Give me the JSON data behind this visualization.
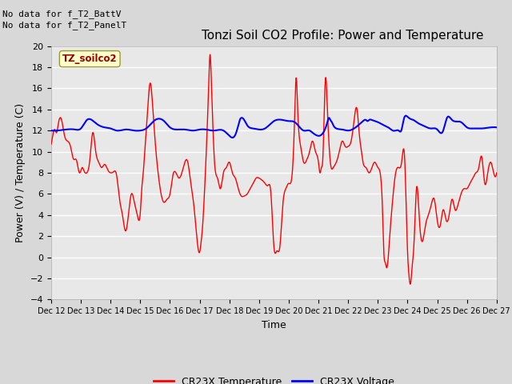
{
  "title": "Tonzi Soil CO2 Profile: Power and Temperature",
  "ylabel": "Power (V) / Temperature (C)",
  "xlabel": "Time",
  "top_left_text_line1": "No data for f_T2_BattV",
  "top_left_text_line2": "No data for f_T2_PanelT",
  "box_label": "TZ_soilco2",
  "ylim": [
    -4,
    20
  ],
  "yticks": [
    -4,
    -2,
    0,
    2,
    4,
    6,
    8,
    10,
    12,
    14,
    16,
    18,
    20
  ],
  "x_tick_labels": [
    "Dec 12",
    "Dec 13",
    "Dec 14",
    "Dec 15",
    "Dec 16",
    "Dec 17",
    "Dec 18",
    "Dec 19",
    "Dec 20",
    "Dec 21",
    "Dec 22",
    "Dec 23",
    "Dec 24",
    "Dec 25",
    "Dec 26",
    "Dec 27"
  ],
  "background_color": "#d8d8d8",
  "plot_bg_color": "#e8e8e8",
  "grid_color": "#ffffff",
  "legend_items": [
    "CR23X Temperature",
    "CR23X Voltage"
  ],
  "legend_colors": [
    "#ff0000",
    "#0000ff"
  ],
  "red_line_color": "#ff0000",
  "blue_line_color": "#0000ff",
  "title_fontsize": 11,
  "axis_label_fontsize": 9,
  "tick_fontsize": 8,
  "note_fontsize": 8,
  "red_x": [
    0.0,
    0.05,
    0.12,
    0.18,
    0.25,
    0.35,
    0.45,
    0.55,
    0.65,
    0.75,
    0.85,
    0.95,
    1.05,
    1.1,
    1.2,
    1.3,
    1.4,
    1.5,
    1.6,
    1.7,
    1.8,
    1.9,
    2.0,
    2.1,
    2.2,
    2.3,
    2.4,
    2.5,
    2.6,
    2.7,
    2.8,
    2.9,
    3.0,
    3.05,
    3.1,
    3.15,
    3.2,
    3.25,
    3.3,
    3.35,
    3.4,
    3.45,
    3.5,
    3.6,
    3.7,
    3.8,
    3.9,
    4.0,
    4.1,
    4.2,
    4.3,
    4.4,
    4.5,
    4.6,
    4.7,
    4.8,
    4.9,
    5.0,
    5.05,
    5.1,
    5.15,
    5.2,
    5.25,
    5.3,
    5.35,
    5.4,
    5.45,
    5.5,
    5.6,
    5.7,
    5.8,
    5.9,
    6.0,
    6.1,
    6.2,
    6.3,
    6.4,
    6.5,
    6.6,
    6.7,
    6.8,
    6.9,
    7.0,
    7.1,
    7.2,
    7.3,
    7.4,
    7.5,
    7.6,
    7.7,
    7.8,
    7.9,
    8.0,
    8.1,
    8.15,
    8.2,
    8.25,
    8.3,
    8.35,
    8.4,
    8.5,
    8.6,
    8.7,
    8.8,
    8.9,
    9.0,
    9.05,
    9.1,
    9.15,
    9.2,
    9.25,
    9.3,
    9.35,
    9.4,
    9.5,
    9.6,
    9.7,
    9.8,
    9.9,
    10.0,
    10.1,
    10.2,
    10.25,
    10.3,
    10.35,
    10.4,
    10.45,
    10.5,
    10.6,
    10.7,
    10.8,
    10.9,
    11.0,
    11.05,
    11.1,
    11.15,
    11.2,
    11.25,
    11.3,
    11.35,
    11.4,
    11.5,
    11.6,
    11.7,
    11.8,
    11.9,
    12.0,
    12.05,
    12.1,
    12.15,
    12.2,
    12.25,
    12.3,
    12.4,
    12.5,
    12.6,
    12.7,
    12.8,
    12.9,
    13.0,
    13.1,
    13.2,
    13.3,
    13.4,
    13.5,
    13.6,
    13.7,
    13.8,
    13.9,
    14.0,
    14.1,
    14.2,
    14.3,
    14.4,
    14.5,
    14.6,
    14.7,
    14.8,
    14.9,
    15.0
  ],
  "red_y": [
    10.7,
    11.5,
    12.1,
    11.8,
    12.8,
    13.0,
    11.5,
    11.0,
    10.5,
    9.3,
    9.2,
    8.0,
    8.5,
    8.2,
    8.0,
    9.2,
    11.8,
    10.0,
    9.0,
    8.5,
    8.8,
    8.3,
    8.0,
    8.1,
    7.8,
    5.5,
    4.0,
    2.5,
    4.0,
    6.0,
    5.2,
    4.0,
    4.2,
    6.5,
    8.0,
    10.0,
    12.0,
    14.0,
    16.0,
    16.4,
    15.0,
    13.0,
    11.0,
    8.0,
    6.0,
    5.2,
    5.5,
    6.0,
    7.8,
    8.0,
    7.5,
    8.0,
    9.0,
    9.0,
    7.0,
    5.0,
    2.0,
    0.5,
    1.5,
    3.0,
    5.5,
    8.5,
    12.0,
    16.0,
    19.2,
    16.0,
    12.0,
    9.0,
    7.5,
    6.5,
    8.0,
    8.5,
    9.0,
    8.0,
    7.5,
    6.5,
    5.8,
    5.8,
    6.0,
    6.5,
    7.0,
    7.5,
    7.5,
    7.3,
    7.0,
    6.8,
    6.0,
    1.0,
    0.6,
    1.0,
    5.0,
    6.5,
    7.0,
    7.5,
    9.5,
    13.5,
    17.0,
    14.0,
    11.5,
    10.5,
    9.0,
    9.2,
    10.0,
    11.0,
    10.0,
    9.0,
    8.0,
    8.5,
    9.5,
    14.5,
    17.0,
    14.0,
    11.0,
    9.0,
    8.5,
    9.0,
    10.0,
    11.0,
    10.5,
    10.5,
    11.0,
    13.0,
    14.0,
    14.0,
    12.5,
    11.0,
    10.0,
    9.0,
    8.5,
    8.0,
    8.5,
    9.0,
    8.5,
    8.3,
    7.5,
    5.0,
    0.5,
    -0.5,
    -1.0,
    0.0,
    2.0,
    5.5,
    8.0,
    8.5,
    9.0,
    9.5,
    0.5,
    -1.8,
    -2.5,
    -1.0,
    0.5,
    3.5,
    6.5,
    3.5,
    1.5,
    3.0,
    4.0,
    5.0,
    5.5,
    3.5,
    3.0,
    4.5,
    3.5,
    4.0,
    5.5,
    4.5,
    5.0,
    6.0,
    6.5,
    6.5,
    7.0,
    7.5,
    8.0,
    8.5,
    9.5,
    7.0,
    8.0,
    9.0,
    8.0,
    8.0
  ],
  "blue_x": [
    0.0,
    0.2,
    0.5,
    0.8,
    1.0,
    1.2,
    1.5,
    1.8,
    2.0,
    2.2,
    2.5,
    2.8,
    3.0,
    3.2,
    3.5,
    3.8,
    4.0,
    4.2,
    4.5,
    4.8,
    5.0,
    5.2,
    5.5,
    5.8,
    6.0,
    6.2,
    6.3,
    6.35,
    6.4,
    6.5,
    6.6,
    6.8,
    7.0,
    7.2,
    7.5,
    7.8,
    8.0,
    8.2,
    8.5,
    8.7,
    8.8,
    8.9,
    9.0,
    9.2,
    9.3,
    9.35,
    9.4,
    9.45,
    9.5,
    9.6,
    9.8,
    10.0,
    10.2,
    10.5,
    10.6,
    10.65,
    10.7,
    10.8,
    11.0,
    11.2,
    11.4,
    11.5,
    11.6,
    11.7,
    11.8,
    11.85,
    11.9,
    12.0,
    12.1,
    12.2,
    12.3,
    12.5,
    12.8,
    13.0,
    13.2,
    13.25,
    13.3,
    13.35,
    13.4,
    13.5,
    13.8,
    14.0,
    14.2,
    14.5,
    14.8,
    15.0
  ],
  "blue_y": [
    12.0,
    12.0,
    12.1,
    12.1,
    12.2,
    13.0,
    12.7,
    12.3,
    12.2,
    12.0,
    12.1,
    12.0,
    12.0,
    12.2,
    13.0,
    12.9,
    12.3,
    12.1,
    12.1,
    12.0,
    12.1,
    12.1,
    12.0,
    12.0,
    11.5,
    11.6,
    12.5,
    13.0,
    13.2,
    13.0,
    12.5,
    12.2,
    12.1,
    12.2,
    12.9,
    13.0,
    12.9,
    12.8,
    12.0,
    12.0,
    11.8,
    11.6,
    11.5,
    12.0,
    12.8,
    13.2,
    13.0,
    12.8,
    12.5,
    12.2,
    12.1,
    12.0,
    12.2,
    12.9,
    13.0,
    12.9,
    13.0,
    13.0,
    12.8,
    12.5,
    12.2,
    12.0,
    12.0,
    12.0,
    12.1,
    12.8,
    13.3,
    13.3,
    13.1,
    13.0,
    12.8,
    12.5,
    12.2,
    12.1,
    12.0,
    12.5,
    13.0,
    13.3,
    13.3,
    13.0,
    12.8,
    12.3,
    12.2,
    12.2,
    12.3,
    12.3
  ]
}
